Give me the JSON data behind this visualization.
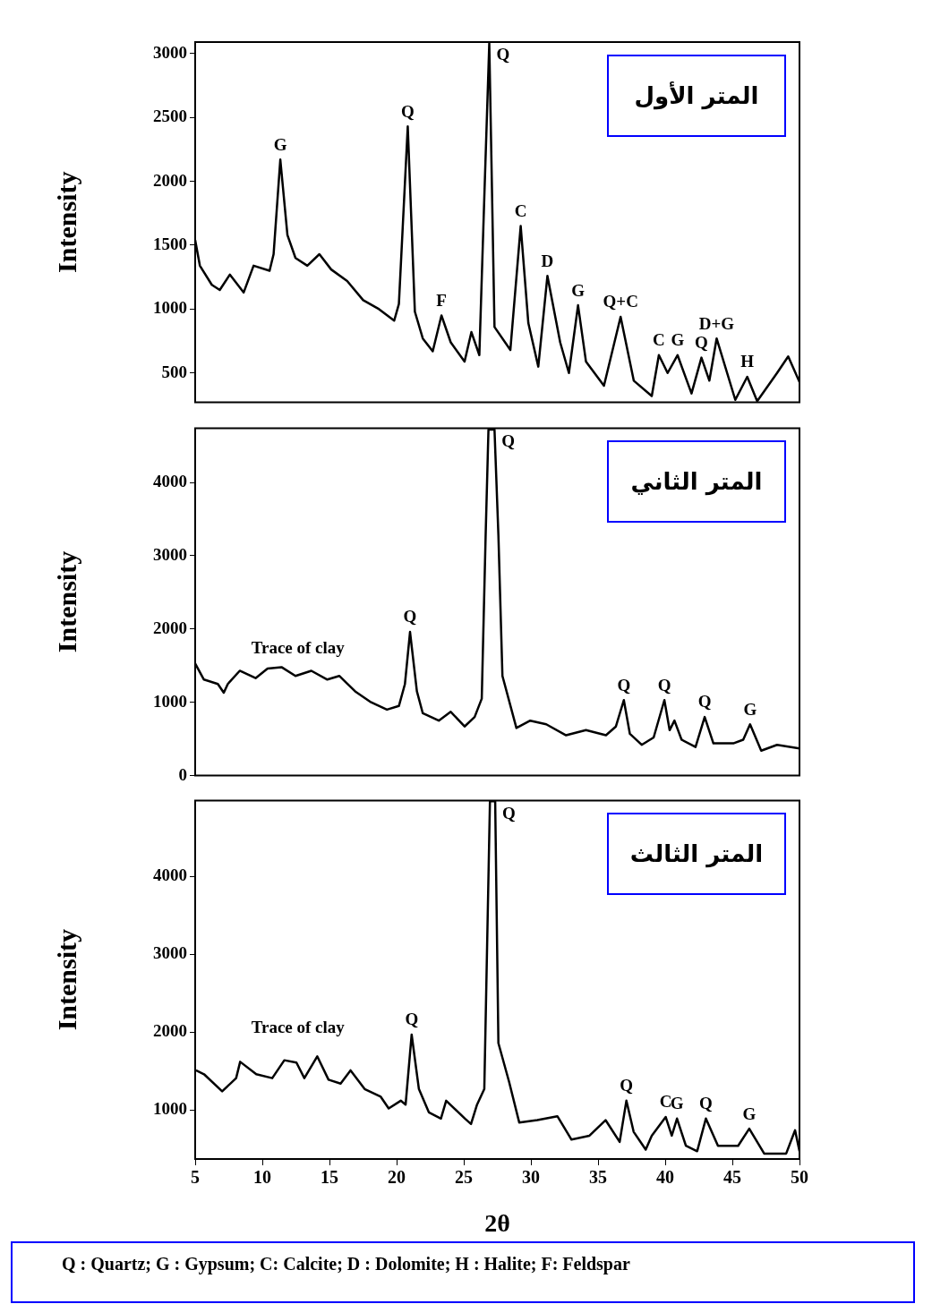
{
  "chart_data": [
    {
      "type": "line",
      "title": "المتر الأول",
      "ylabel": "Intensity",
      "color": "#000000",
      "tick_labels": "y",
      "xlim": [
        5,
        50
      ],
      "ylim": [
        270,
        3090
      ],
      "yticks": [
        500,
        1000,
        1500,
        2000,
        2500,
        3000
      ],
      "x": [
        5.0,
        5.35,
        6.24,
        6.83,
        7.58,
        8.61,
        9.35,
        10.54,
        10.84,
        11.34,
        11.87,
        12.47,
        13.35,
        14.25,
        15.13,
        16.32,
        17.51,
        18.69,
        19.82,
        20.17,
        20.83,
        21.36,
        21.95,
        22.69,
        23.34,
        24.03,
        25.06,
        25.57,
        26.16,
        26.55,
        26.9,
        27.29,
        28.47,
        29.24,
        29.81,
        30.55,
        31.23,
        32.18,
        32.83,
        33.51,
        34.1,
        35.44,
        36.68,
        37.66,
        39.0,
        39.53,
        40.18,
        40.92,
        41.96,
        42.7,
        43.29,
        43.83,
        45.22,
        46.11,
        46.85,
        48.33,
        49.16,
        50.0
      ],
      "values": [
        1540,
        1340,
        1190,
        1150,
        1270,
        1130,
        1340,
        1300,
        1430,
        2170,
        1580,
        1400,
        1340,
        1430,
        1310,
        1220,
        1070,
        1000,
        910,
        1040,
        2430,
        980,
        770,
        670,
        950,
        740,
        590,
        820,
        640,
        1940,
        3080,
        860,
        680,
        1650,
        890,
        550,
        1260,
        740,
        500,
        1030,
        590,
        400,
        940,
        440,
        320,
        640,
        500,
        640,
        340,
        620,
        440,
        770,
        290,
        470,
        280,
        500,
        630,
        430
      ],
      "annotations": [
        {
          "text": "G",
          "x": 11.34,
          "y": 2170
        },
        {
          "text": "Q",
          "x": 20.83,
          "y": 2430
        },
        {
          "text": "Q",
          "x": 26.9,
          "y": 3080
        },
        {
          "text": "F",
          "x": 23.34,
          "y": 950
        },
        {
          "text": "C",
          "x": 29.24,
          "y": 1650
        },
        {
          "text": "D",
          "x": 31.23,
          "y": 1260
        },
        {
          "text": "G",
          "x": 33.51,
          "y": 1030
        },
        {
          "text": "Q+C",
          "x": 36.68,
          "y": 940
        },
        {
          "text": "C",
          "x": 39.53,
          "y": 640
        },
        {
          "text": "G",
          "x": 40.92,
          "y": 640
        },
        {
          "text": "Q",
          "x": 42.7,
          "y": 620
        },
        {
          "text": "D+G",
          "x": 43.83,
          "y": 770
        },
        {
          "text": "H",
          "x": 46.11,
          "y": 470
        }
      ]
    },
    {
      "type": "line",
      "title": "المتر الثاني",
      "ylabel": "Intensity",
      "color": "#000000",
      "tick_labels": "y",
      "xlim": [
        5,
        50
      ],
      "ylim": [
        0,
        4740
      ],
      "yticks": [
        0,
        1000,
        2000,
        3000,
        4000
      ],
      "x": [
        5.0,
        5.65,
        6.69,
        7.13,
        7.43,
        8.32,
        9.5,
        10.39,
        11.43,
        12.47,
        13.65,
        14.84,
        15.73,
        16.91,
        18.1,
        19.28,
        20.17,
        20.62,
        21.0,
        21.51,
        21.95,
        23.14,
        24.03,
        25.06,
        25.81,
        26.34,
        26.63,
        26.84,
        27.29,
        27.58,
        27.88,
        28.92,
        29.95,
        31.14,
        32.62,
        34.1,
        35.59,
        36.33,
        36.92,
        37.37,
        38.25,
        39.14,
        39.94,
        40.33,
        40.69,
        41.22,
        42.26,
        42.94,
        43.59,
        45.07,
        45.81,
        46.32,
        47.15,
        48.33,
        50.0
      ],
      "values": [
        1530,
        1310,
        1250,
        1130,
        1250,
        1430,
        1330,
        1460,
        1480,
        1360,
        1430,
        1310,
        1360,
        1150,
        1000,
        900,
        950,
        1250,
        1960,
        1150,
        850,
        750,
        870,
        670,
        800,
        1050,
        3280,
        4720,
        4720,
        3280,
        1360,
        650,
        750,
        700,
        550,
        620,
        550,
        670,
        1030,
        570,
        420,
        520,
        1030,
        620,
        750,
        490,
        390,
        800,
        440,
        440,
        490,
        700,
        340,
        420,
        370
      ],
      "annotations": [
        "Trace of clay",
        {
          "text": "Q",
          "x": 21.0,
          "y": 1960
        },
        {
          "text": "Q",
          "x": 27.29,
          "y": 4720
        },
        {
          "text": "Q",
          "x": 36.92,
          "y": 1030
        },
        {
          "text": "Q",
          "x": 39.94,
          "y": 1030
        },
        {
          "text": "Q",
          "x": 42.94,
          "y": 800
        },
        {
          "text": "G",
          "x": 46.32,
          "y": 700
        }
      ]
    },
    {
      "type": "line",
      "title": "المتر الثالث",
      "ylabel": "Intensity",
      "xlabel": "2θ",
      "color": "#000000",
      "xlim": [
        5,
        50
      ],
      "ylim": [
        370,
        4980
      ],
      "xticks": [
        5,
        10,
        15,
        20,
        25,
        30,
        35,
        40,
        45,
        50
      ],
      "yticks": [
        1000,
        2000,
        3000,
        4000
      ],
      "x": [
        5.06,
        5.66,
        7.01,
        8.05,
        8.35,
        9.55,
        10.74,
        11.64,
        12.54,
        13.13,
        14.09,
        14.93,
        15.83,
        16.57,
        17.62,
        18.82,
        19.41,
        20.31,
        20.67,
        21.12,
        21.66,
        22.4,
        23.3,
        23.69,
        25.09,
        25.54,
        25.99,
        26.53,
        26.95,
        27.34,
        27.58,
        28.38,
        29.13,
        30.48,
        31.97,
        33.02,
        34.36,
        35.56,
        36.61,
        37.11,
        37.65,
        38.55,
        39.0,
        40.04,
        40.49,
        40.88,
        41.54,
        42.38,
        43.03,
        43.93,
        45.43,
        46.26,
        47.37,
        49.01,
        49.67,
        50.0
      ],
      "values": [
        1510,
        1460,
        1240,
        1410,
        1620,
        1460,
        1410,
        1640,
        1610,
        1410,
        1690,
        1390,
        1340,
        1510,
        1270,
        1170,
        1020,
        1120,
        1070,
        1970,
        1270,
        970,
        890,
        1120,
        890,
        820,
        1070,
        1270,
        4970,
        4970,
        1860,
        1360,
        840,
        870,
        920,
        620,
        670,
        870,
        590,
        1120,
        720,
        490,
        670,
        910,
        670,
        890,
        540,
        470,
        890,
        540,
        540,
        760,
        440,
        440,
        740,
        470
      ],
      "annotations": [
        "Trace of clay",
        {
          "text": "Q",
          "x": 21.12,
          "y": 1970
        },
        {
          "text": "Q",
          "x": 27.34,
          "y": 4970
        },
        {
          "text": "Q",
          "x": 37.11,
          "y": 1120
        },
        {
          "text": "C",
          "x": 40.04,
          "y": 910
        },
        {
          "text": "G",
          "x": 40.88,
          "y": 890
        },
        {
          "text": "Q",
          "x": 43.03,
          "y": 890
        },
        {
          "text": "G",
          "x": 46.26,
          "y": 760
        }
      ]
    },
    {
      "type": "other",
      "annotations": [
        "Q : Quartz; G : Gypsum; C: Calcite; D : Dolomite; H : Halite; F: Feldspar"
      ]
    }
  ]
}
